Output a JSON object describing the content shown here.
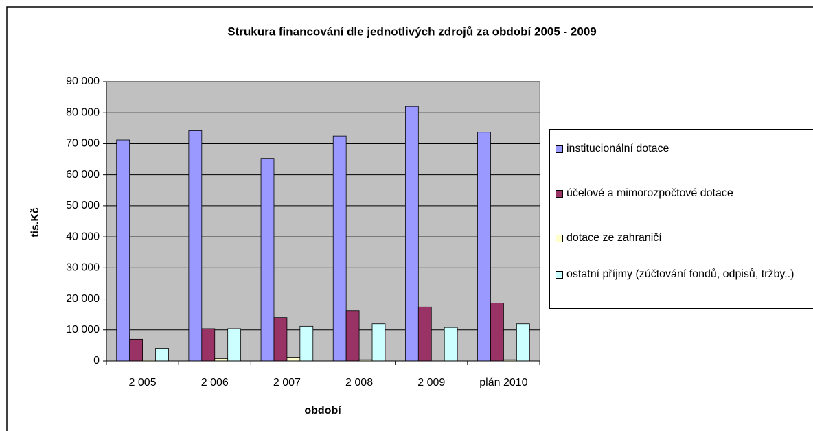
{
  "chart_data": {
    "type": "bar",
    "title": "Strukura financování dle jednotlivých zdrojů za  období 2005 - 2009",
    "x_label": "období",
    "y_label": "tis.Kč",
    "categories": [
      "2 005",
      "2 006",
      "2 007",
      "2 008",
      "2 009",
      "plán 2010"
    ],
    "series": [
      {
        "name": "institucionální dotace",
        "color": "#9999ff",
        "values": [
          71200,
          74200,
          65300,
          72500,
          82000,
          73700
        ]
      },
      {
        "name": "účelové a mimorozpočtové dotace",
        "color": "#993366",
        "values": [
          7000,
          10400,
          14000,
          16200,
          17400,
          18700
        ]
      },
      {
        "name": "dotace ze zahraničí",
        "color": "#ffffcc",
        "values": [
          300,
          800,
          1200,
          400,
          0,
          400
        ]
      },
      {
        "name": "ostatní příjmy (zúčtování fondů, odpisů, tržby..)",
        "color": "#ccffff",
        "values": [
          4100,
          10400,
          11200,
          12000,
          10800,
          12000
        ]
      }
    ],
    "ylim": [
      0,
      90000
    ],
    "yticks": [
      {
        "value": 0,
        "label": "0"
      },
      {
        "value": 10000,
        "label": "10 000"
      },
      {
        "value": 20000,
        "label": "20 000"
      },
      {
        "value": 30000,
        "label": "30 000"
      },
      {
        "value": 40000,
        "label": "40 000"
      },
      {
        "value": 50000,
        "label": "50 000"
      },
      {
        "value": 60000,
        "label": "60 000"
      },
      {
        "value": 70000,
        "label": "70 000"
      },
      {
        "value": 80000,
        "label": "80 000"
      },
      {
        "value": 90000,
        "label": "90 000"
      }
    ],
    "grid": true,
    "plot_background": "#c0c0c0",
    "legend": "right"
  }
}
